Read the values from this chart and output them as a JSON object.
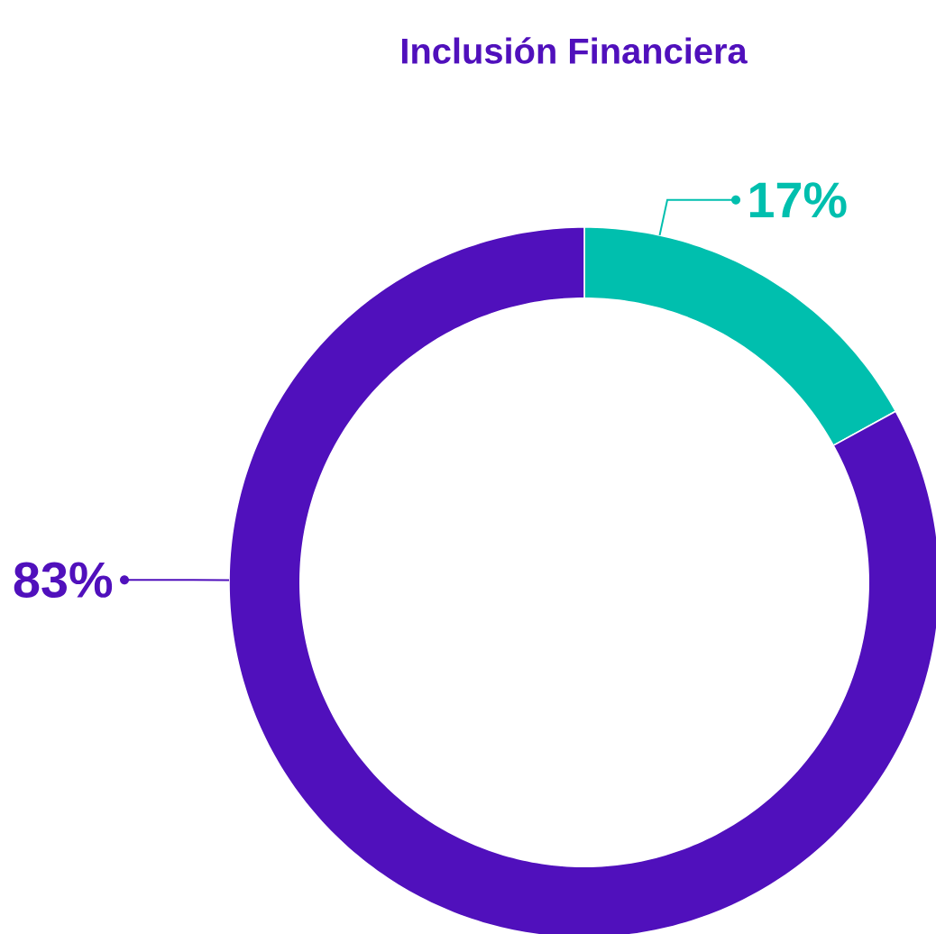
{
  "chart_data": {
    "type": "donut",
    "title": "Inclusión Financiera",
    "categories": [
      null,
      null
    ],
    "values": [
      17,
      83
    ],
    "colors": [
      "#00bfae",
      "#5010bc"
    ],
    "value_labels": [
      "17%",
      "83%"
    ]
  }
}
